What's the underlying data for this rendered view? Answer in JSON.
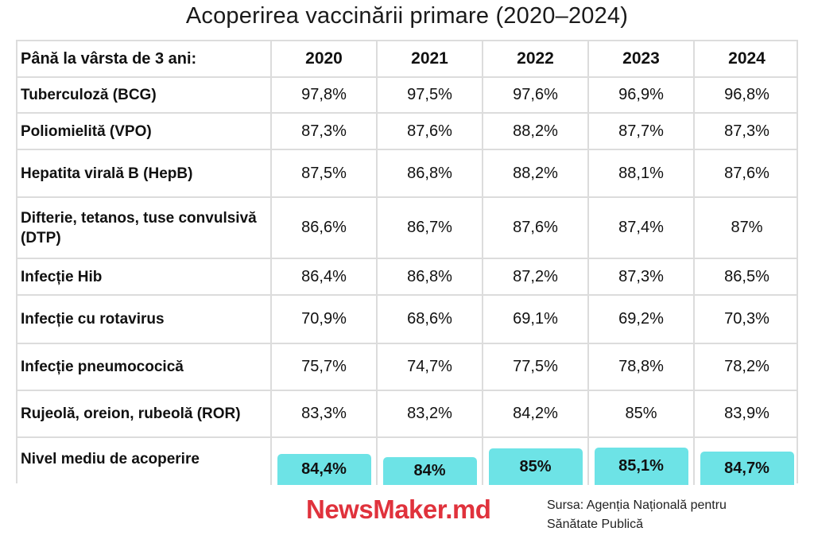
{
  "title": "Acoperirea vaccinării primare (2020–2024)",
  "chart_data": {
    "type": "table",
    "title": "Acoperirea vaccinării primare (2020–2024)",
    "header": {
      "label": "Până la vârsta de 3 ani:",
      "years": [
        "2020",
        "2021",
        "2022",
        "2023",
        "2024"
      ]
    },
    "rows": [
      {
        "label": "Tuberculoză (BCG)",
        "values": [
          "97,8%",
          "97,5%",
          "97,6%",
          "96,9%",
          "96,8%"
        ]
      },
      {
        "label": "Poliomielită (VPO)",
        "values": [
          "87,3%",
          "87,6%",
          "88,2%",
          "87,7%",
          "87,3%"
        ]
      },
      {
        "label": "Hepatita virală B (HepB)",
        "values": [
          "87,5%",
          "86,8%",
          "88,2%",
          "88,1%",
          "87,6%"
        ]
      },
      {
        "label": "Difterie, tetanos, tuse convulsivă (DTP)",
        "values": [
          "86,6%",
          "86,7%",
          "87,6%",
          "87,4%",
          "87%"
        ]
      },
      {
        "label": "Infecție Hib",
        "values": [
          "86,4%",
          "86,8%",
          "87,2%",
          "87,3%",
          "86,5%"
        ]
      },
      {
        "label": "Infecție cu rotavirus",
        "values": [
          "70,9%",
          "68,6%",
          "69,1%",
          "69,2%",
          "70,3%"
        ]
      },
      {
        "label": "Infecție pneumococică",
        "values": [
          "75,7%",
          "74,7%",
          "77,5%",
          "78,8%",
          "78,2%"
        ]
      },
      {
        "label": "Rujeolă, oreion, rubeolă (ROR)",
        "values": [
          "83,3%",
          "83,2%",
          "84,2%",
          "85%",
          "83,9%"
        ]
      }
    ],
    "average": {
      "label": "Nivel mediu de acoperire",
      "values": [
        "84,4%",
        "84%",
        "85%",
        "85,1%",
        "84,7%"
      ],
      "numeric": [
        84.4,
        84,
        85,
        85.1,
        84.7
      ],
      "color": "#6de3e6"
    }
  },
  "logo": "NewsMaker.md",
  "source": {
    "line1": "Sursa: Agenția Națională pentru",
    "line2": "Sănătate Publică"
  },
  "colors": {
    "brand": "#e0323c",
    "highlight": "#6de3e6",
    "grid": "#dcdcdc"
  }
}
